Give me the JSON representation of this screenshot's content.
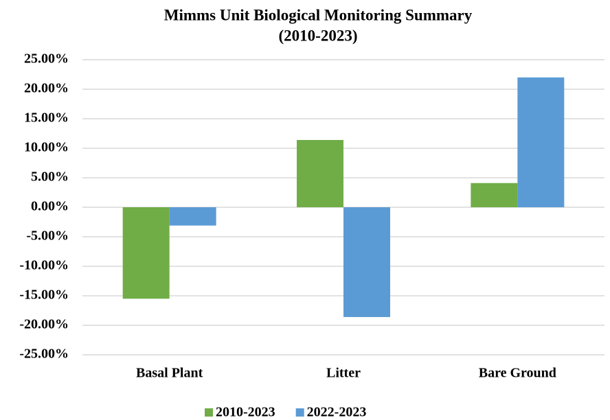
{
  "chart_data": {
    "type": "bar",
    "title": [
      "Mimms Unit Biological Monitoring Summary",
      "(2010-2023)"
    ],
    "categories": [
      "Basal Plant",
      "Litter",
      "Bare Ground"
    ],
    "series": [
      {
        "name": "2010-2023",
        "color": "#70ad47",
        "values": [
          -15.5,
          11.4,
          4.1
        ]
      },
      {
        "name": "2022-2023",
        "color": "#5b9bd5",
        "values": [
          -3.1,
          -18.6,
          22.0
        ]
      }
    ],
    "ylim": [
      -25,
      25
    ],
    "yticks": [
      {
        "value": 25,
        "label": "25.00%"
      },
      {
        "value": 20,
        "label": "20.00%"
      },
      {
        "value": 15,
        "label": "15.00%"
      },
      {
        "value": 10,
        "label": "10.00%"
      },
      {
        "value": 5,
        "label": "5.00%"
      },
      {
        "value": 0,
        "label": "0.00%"
      },
      {
        "value": -5,
        "label": "-5.00%"
      },
      {
        "value": -10,
        "label": "-10.00%"
      },
      {
        "value": -15,
        "label": "-15.00%"
      },
      {
        "value": -20,
        "label": "-20.00%"
      },
      {
        "value": -25,
        "label": "-25.00%"
      }
    ],
    "grid": true,
    "legend": "bottom"
  }
}
